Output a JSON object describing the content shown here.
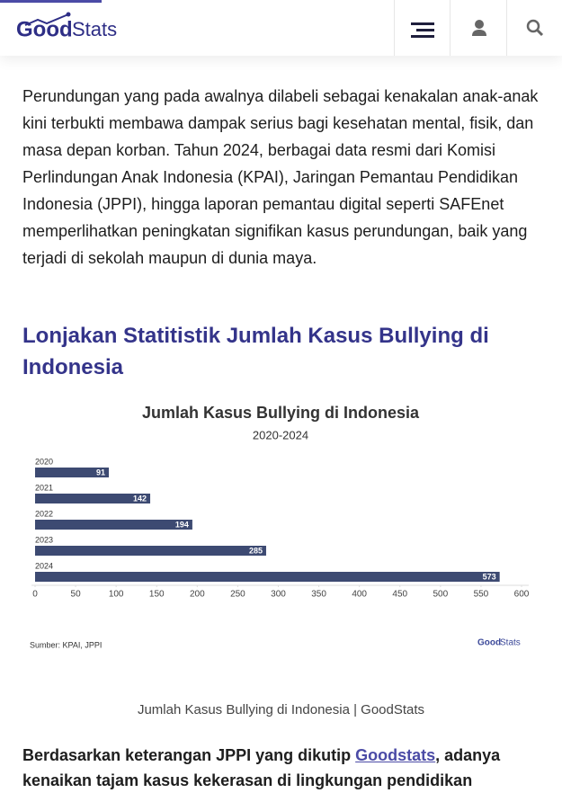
{
  "header": {
    "logo_part1": "Good",
    "logo_part2": "Stats"
  },
  "article": {
    "paragraph": "Perundungan yang pada awalnya dilabeli sebagai kenakalan anak-anak kini terbukti membawa dampak serius bagi kesehatan mental, fisik, dan masa depan korban. Tahun 2024, berbagai data resmi dari Komisi Perlindungan Anak Indonesia (KPAI), Jaringan Pemantau Pendidikan Indonesia (JPPI), hingga laporan pemantau digital seperti SAFEnet memperlihatkan peningkatan signifikan kasus perundungan, baik yang terjadi di sekolah maupun di dunia maya.",
    "heading": "Lonjakan Statitistik Jumlah Kasus Bullying di Indonesia",
    "caption": "Jumlah Kasus Bullying di Indonesia | GoodStats",
    "closing_before": "Berdasarkan keterangan JPPI yang dikutip ",
    "closing_link": "Goodstats",
    "closing_after": ", adanya kenaikan tajam kasus kekerasan di lingkungan pendidikan"
  },
  "chart_data": {
    "type": "bar",
    "orientation": "horizontal",
    "title": "Jumlah Kasus Bullying di Indonesia",
    "subtitle": "2020-2024",
    "categories": [
      "2020",
      "2021",
      "2022",
      "2023",
      "2024"
    ],
    "values": [
      91,
      142,
      194,
      285,
      573
    ],
    "color": "#3d4a72",
    "xlim": [
      0,
      600
    ],
    "xticks": [
      0,
      50,
      100,
      150,
      200,
      250,
      300,
      350,
      400,
      450,
      500,
      550,
      600
    ],
    "source": "Sumber: KPAI, JPPI",
    "logo_part1": "Good",
    "logo_part2": "Stats"
  }
}
